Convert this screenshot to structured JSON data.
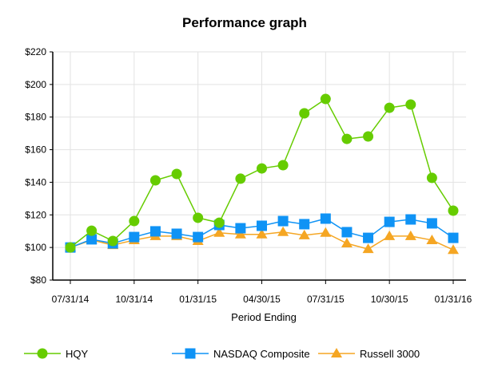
{
  "chart_data": {
    "type": "line",
    "title": "Performance graph",
    "xlabel": "Period Ending",
    "ylabel": "",
    "ylim": [
      80,
      220
    ],
    "yticks": [
      "$80",
      "$100",
      "$120",
      "$140",
      "$160",
      "$180",
      "$200",
      "$220"
    ],
    "ytick_values": [
      80,
      100,
      120,
      140,
      160,
      180,
      200,
      220
    ],
    "xtick_labels": [
      "07/31/14",
      "10/31/14",
      "01/31/15",
      "04/30/15",
      "07/31/15",
      "10/30/15",
      "01/31/16"
    ],
    "xtick_indices": [
      0,
      3,
      6,
      9,
      12,
      15,
      18
    ],
    "num_points": 19,
    "grid": true,
    "legend_position": "bottom",
    "series": [
      {
        "name": "HQY",
        "color": "#66cc00",
        "marker": "circle",
        "values": [
          100,
          110.3,
          104,
          116.2,
          141.2,
          145.1,
          118.2,
          115.2,
          142.2,
          148.5,
          150.5,
          182.3,
          191.1,
          166.6,
          168.1,
          185.7,
          187.7,
          142.7,
          122.6
        ]
      },
      {
        "name": "NASDAQ Composite",
        "color": "#0f93f5",
        "marker": "square",
        "values": [
          100,
          105,
          102.5,
          106.4,
          109.9,
          108.4,
          106.4,
          113.8,
          111.8,
          113.3,
          116.2,
          114.3,
          117.7,
          109.4,
          105.9,
          115.7,
          117.2,
          114.8,
          105.9
        ]
      },
      {
        "name": "Russell 3000",
        "color": "#f5a623",
        "marker": "triangle",
        "values": [
          100,
          104.5,
          101.5,
          104.5,
          107,
          107,
          104,
          109,
          108,
          108,
          109.5,
          107.5,
          109,
          102.5,
          99,
          107,
          107,
          104.5,
          98.5
        ]
      }
    ]
  }
}
